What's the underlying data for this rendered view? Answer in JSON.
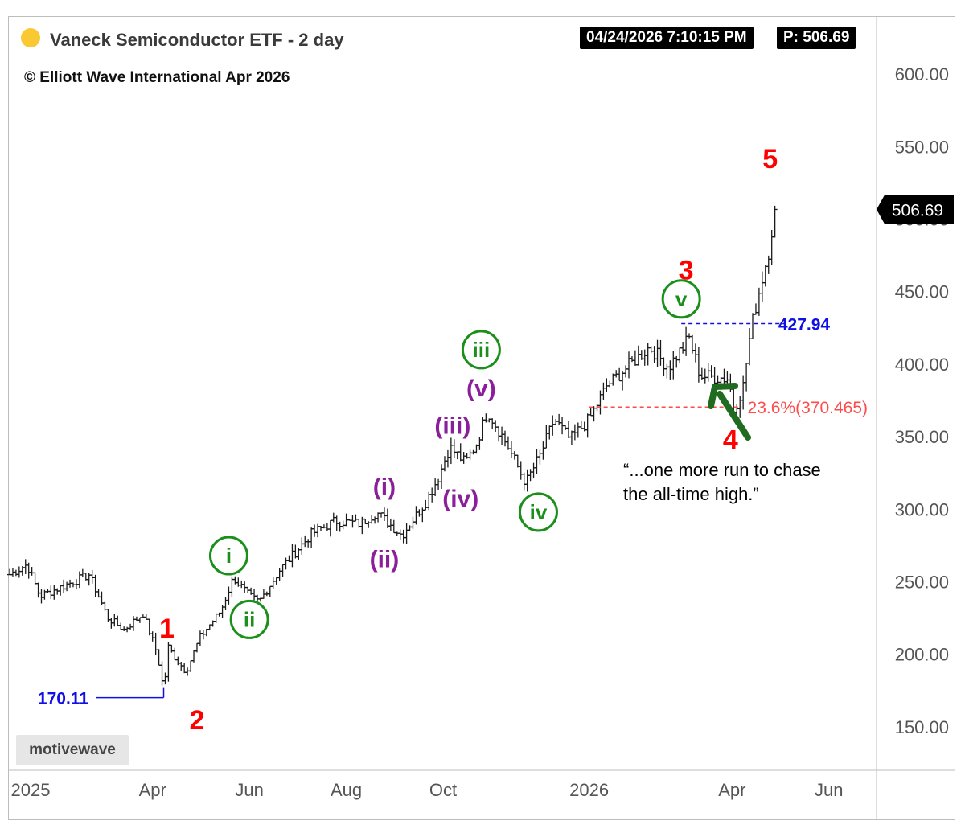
{
  "header": {
    "title": "Vaneck Semiconductor ETF - 2 day",
    "copyright": "© Elliott Wave International Apr 2026",
    "timestamp": "04/24/2026 7:10:15 PM",
    "price_label": "P: 506.69"
  },
  "branding": {
    "logo": "motivewave"
  },
  "colors": {
    "accent_dot": "#f9c832",
    "wave_red": "#ff0000",
    "wave_green": "#1a8f1a",
    "wave_purple": "#8b1f9a",
    "level_blue": "#1010e6",
    "fib_red": "#ff4b4b",
    "arrow_green": "#1f6b1f",
    "bars": "#1a1a1a"
  },
  "annotation": {
    "quote_line1": "“...one more run to chase",
    "quote_line2": "the all-time high.”",
    "arrow_icon": "arrow-up-left-icon"
  },
  "chart_data": {
    "type": "ohlc",
    "title": "Vaneck Semiconductor ETF - 2 day",
    "xlabel": "",
    "ylabel": "",
    "ylim": [
      120,
      640
    ],
    "xlim": [
      "2025-01-01",
      "2026-07-01"
    ],
    "grid": false,
    "y_ticks": [
      150,
      200,
      250,
      300,
      350,
      400,
      450,
      500,
      550,
      600
    ],
    "y_tick_labels": [
      "150.00",
      "200.00",
      "250.00",
      "300.00",
      "350.00",
      "400.00",
      "450.00",
      "500.00",
      "550.00",
      "600.00"
    ],
    "x_ticks": [
      {
        "date": "2025-01-01",
        "label": "2025"
      },
      {
        "date": "2025-04-01",
        "label": "Apr"
      },
      {
        "date": "2025-06-01",
        "label": "Jun"
      },
      {
        "date": "2025-08-01",
        "label": "Aug"
      },
      {
        "date": "2025-10-01",
        "label": "Oct"
      },
      {
        "date": "2026-01-01",
        "label": "2026"
      },
      {
        "date": "2026-04-01",
        "label": "Apr"
      },
      {
        "date": "2026-06-01",
        "label": "Jun"
      }
    ],
    "last_price": 506.69,
    "last_price_label": "506.69",
    "anchors": [
      [
        "2025-01-01",
        255
      ],
      [
        "2025-01-12",
        262
      ],
      [
        "2025-01-20",
        240
      ],
      [
        "2025-02-10",
        250
      ],
      [
        "2025-02-20",
        255
      ],
      [
        "2025-03-04",
        225
      ],
      [
        "2025-03-14",
        217
      ],
      [
        "2025-03-26",
        228
      ],
      [
        "2025-04-04",
        200
      ],
      [
        "2025-04-08",
        175
      ],
      [
        "2025-04-11",
        205
      ],
      [
        "2025-04-15",
        198
      ],
      [
        "2025-04-22",
        188
      ],
      [
        "2025-05-01",
        212
      ],
      [
        "2025-05-14",
        230
      ],
      [
        "2025-05-22",
        253
      ],
      [
        "2025-06-01",
        240
      ],
      [
        "2025-06-07",
        236
      ],
      [
        "2025-06-20",
        258
      ],
      [
        "2025-07-10",
        283
      ],
      [
        "2025-07-25",
        292
      ],
      [
        "2025-08-10",
        290
      ],
      [
        "2025-08-20",
        298
      ],
      [
        "2025-09-05",
        282
      ],
      [
        "2025-09-20",
        305
      ],
      [
        "2025-09-28",
        322
      ],
      [
        "2025-10-05",
        343
      ],
      [
        "2025-10-15",
        332
      ],
      [
        "2025-10-22",
        345
      ],
      [
        "2025-10-29",
        368
      ],
      [
        "2025-11-10",
        345
      ],
      [
        "2025-11-22",
        318
      ],
      [
        "2025-12-01",
        337
      ],
      [
        "2025-12-10",
        362
      ],
      [
        "2025-12-20",
        348
      ],
      [
        "2026-01-01",
        362
      ],
      [
        "2026-01-12",
        385
      ],
      [
        "2026-01-25",
        398
      ],
      [
        "2026-02-08",
        412
      ],
      [
        "2026-02-20",
        398
      ],
      [
        "2026-03-05",
        418
      ],
      [
        "2026-03-12",
        392
      ],
      [
        "2026-03-30",
        390
      ],
      [
        "2026-04-02",
        368
      ],
      [
        "2026-04-08",
        385
      ],
      [
        "2026-04-13",
        425
      ],
      [
        "2026-04-18",
        450
      ],
      [
        "2026-04-24",
        478
      ],
      [
        "2026-04-28",
        506.69
      ]
    ],
    "wave_labels": [
      {
        "text": "1",
        "degree": "primary",
        "date": "2025-04-10",
        "price": 218
      },
      {
        "text": "2",
        "degree": "primary",
        "date": "2025-04-29",
        "price": 155
      },
      {
        "text": "3",
        "degree": "primary",
        "date": "2026-03-03",
        "price": 465
      },
      {
        "text": "4",
        "degree": "primary",
        "date": "2026-03-31",
        "price": 348
      },
      {
        "text": "5",
        "degree": "primary",
        "date": "2026-04-25",
        "price": 542
      },
      {
        "text": "i",
        "degree": "intermediate",
        "date": "2025-05-19",
        "price": 268
      },
      {
        "text": "ii",
        "degree": "intermediate",
        "date": "2025-06-01",
        "price": 224
      },
      {
        "text": "iii",
        "degree": "intermediate",
        "date": "2025-10-25",
        "price": 410
      },
      {
        "text": "iv",
        "degree": "intermediate",
        "date": "2025-11-30",
        "price": 298
      },
      {
        "text": "v",
        "degree": "intermediate",
        "date": "2026-02-28",
        "price": 445
      },
      {
        "text": "(i)",
        "degree": "minor",
        "date": "2025-08-25",
        "price": 316
      },
      {
        "text": "(ii)",
        "degree": "minor",
        "date": "2025-08-25",
        "price": 266
      },
      {
        "text": "(iii)",
        "degree": "minor",
        "date": "2025-10-07",
        "price": 358
      },
      {
        "text": "(iv)",
        "degree": "minor",
        "date": "2025-10-12",
        "price": 308
      },
      {
        "text": "(v)",
        "degree": "minor",
        "date": "2025-10-25",
        "price": 384
      }
    ],
    "levels": [
      {
        "label": "170.11",
        "value": 170.11,
        "from": "2025-04-08",
        "style": "solid",
        "color": "#1010e6"
      },
      {
        "label": "427.94",
        "value": 427.94,
        "from": "2026-02-28",
        "to": "2026-05-04",
        "style": "dashed",
        "color": "#1010e6"
      },
      {
        "label": "23.6%(370.465)",
        "value": 370.465,
        "from": "2026-01-01",
        "to": "2026-04-07",
        "style": "dashed",
        "color": "#ff4b4b"
      }
    ]
  }
}
